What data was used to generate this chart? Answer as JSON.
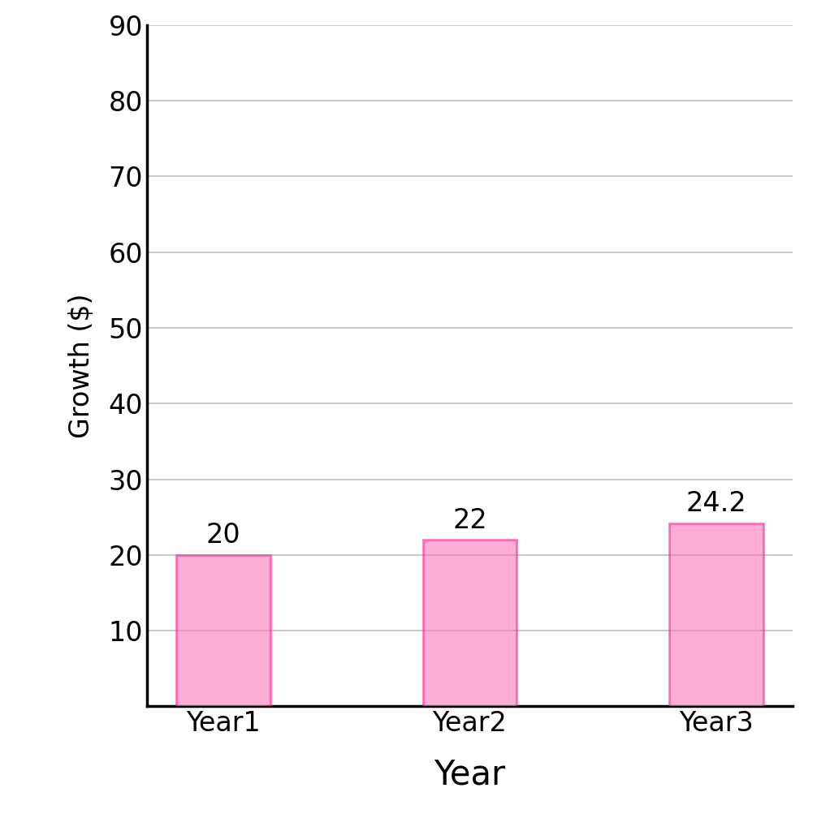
{
  "categories": [
    "Year1",
    "Year2",
    "Year3"
  ],
  "values": [
    20,
    22,
    24.2
  ],
  "bar_color": "#FF6EB4",
  "bar_edge_color": "#FF1493",
  "bar_alpha": 0.55,
  "xlabel": "Year",
  "ylabel": "Growth ($)",
  "ylim": [
    0,
    90
  ],
  "yticks": [
    10,
    20,
    30,
    40,
    50,
    60,
    70,
    80,
    90
  ],
  "grid_color": "#C8C8C8",
  "grid_linewidth": 1.5,
  "xlabel_fontsize": 30,
  "ylabel_fontsize": 24,
  "xtick_fontsize": 24,
  "ytick_fontsize": 24,
  "annotation_fontsize": 24,
  "bar_width": 0.38,
  "background_color": "#FFFFFF",
  "spine_linewidth": 2.5
}
